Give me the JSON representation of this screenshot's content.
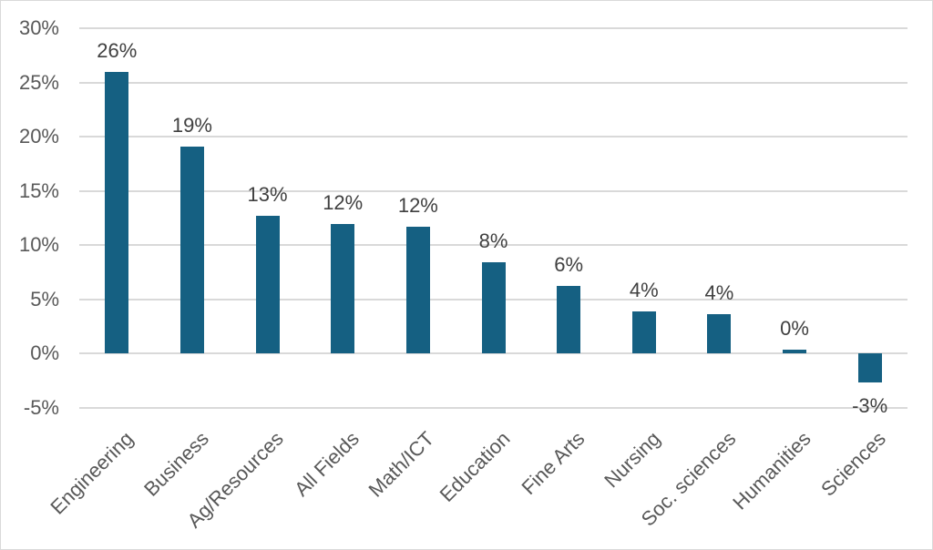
{
  "chart_data": {
    "type": "bar",
    "title": "",
    "xlabel": "",
    "ylabel": "",
    "categories": [
      "Engineering",
      "Business",
      "Ag/Resources",
      "All Fields",
      "Math/ICT",
      "Education",
      "Fine Arts",
      "Nursing",
      "Soc. sciences",
      "Humanities",
      "Sciences"
    ],
    "values": [
      26,
      19.1,
      12.7,
      11.9,
      11.7,
      8.4,
      6.2,
      3.9,
      3.6,
      0.3,
      -2.7
    ],
    "data_labels": [
      "26%",
      "19%",
      "13%",
      "12%",
      "12%",
      "8%",
      "6%",
      "4%",
      "4%",
      "0%",
      "-3%"
    ],
    "ytick_labels": [
      "30%",
      "25%",
      "20%",
      "15%",
      "10%",
      "5%",
      "0%",
      "-5%"
    ],
    "ytick_values": [
      30,
      25,
      20,
      15,
      10,
      5,
      0,
      -5
    ],
    "ylim": [
      -5,
      30
    ],
    "grid": true,
    "legend": false,
    "colors": {
      "bar": "#156082",
      "gridline": "#d9d9d9",
      "axis_text": "#595959",
      "data_label_text": "#404040",
      "chart_border": "#d9d9d9",
      "background": "#ffffff"
    }
  }
}
